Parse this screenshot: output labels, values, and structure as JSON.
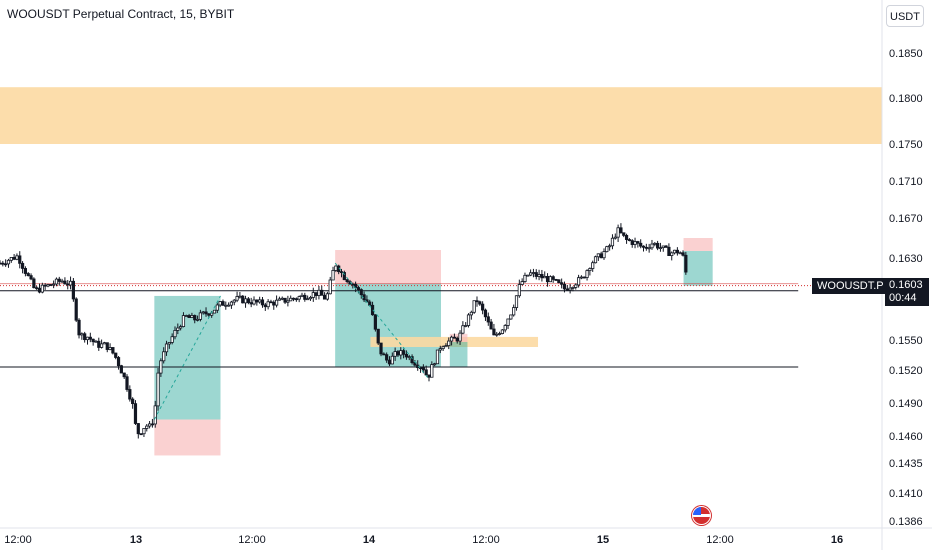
{
  "header": {
    "title": "WOOUSDT Perpetual Contract, 15, BYBIT",
    "currency": "USDT"
  },
  "price_tag": {
    "symbol": "WOOUSDT.P",
    "price": "0.1603",
    "countdown": "00:44"
  },
  "event_icon": "us-flag-icon",
  "colors": {
    "candle": "#131722",
    "zone": "#fcd9a2",
    "profit_zone": "#26a69a",
    "loss_zone": "#f7b9b9",
    "sr_line": "#131722",
    "last_price_line": "#d32f2f"
  },
  "chart_data": {
    "type": "candlestick",
    "symbol": "WOOUSDT Perpetual Contract",
    "interval": "15",
    "exchange": "BYBIT",
    "y_ticks": [
      "0.1850",
      "0.1800",
      "0.1750",
      "0.1710",
      "0.1670",
      "0.1630",
      "0.1603",
      "0.1550",
      "0.1520",
      "0.1490",
      "0.1460",
      "0.1435",
      "0.1410",
      "0.1386"
    ],
    "x_ticks": [
      "12:00",
      "13",
      "12:00",
      "14",
      "12:00",
      "15",
      "12:00",
      "16"
    ],
    "last_price": 0.1603,
    "price_path": [
      [
        0.0,
        0.1625
      ],
      [
        0.02,
        0.1632
      ],
      [
        0.03,
        0.1615
      ],
      [
        0.04,
        0.1598
      ],
      [
        0.06,
        0.1605
      ],
      [
        0.07,
        0.1608
      ],
      [
        0.08,
        0.1604
      ],
      [
        0.09,
        0.1555
      ],
      [
        0.1,
        0.1553
      ],
      [
        0.11,
        0.1545
      ],
      [
        0.12,
        0.1545
      ],
      [
        0.13,
        0.1535
      ],
      [
        0.14,
        0.1515
      ],
      [
        0.15,
        0.149
      ],
      [
        0.155,
        0.1462
      ],
      [
        0.16,
        0.1465
      ],
      [
        0.165,
        0.147
      ],
      [
        0.17,
        0.1468
      ],
      [
        0.175,
        0.1478
      ],
      [
        0.18,
        0.1525
      ],
      [
        0.19,
        0.1545
      ],
      [
        0.2,
        0.156
      ],
      [
        0.21,
        0.1573
      ],
      [
        0.22,
        0.157
      ],
      [
        0.23,
        0.1575
      ],
      [
        0.24,
        0.1578
      ],
      [
        0.25,
        0.1585
      ],
      [
        0.27,
        0.159
      ],
      [
        0.3,
        0.1585
      ],
      [
        0.32,
        0.1588
      ],
      [
        0.34,
        0.1592
      ],
      [
        0.36,
        0.1596
      ],
      [
        0.37,
        0.159
      ],
      [
        0.38,
        0.1625
      ],
      [
        0.39,
        0.1612
      ],
      [
        0.4,
        0.1605
      ],
      [
        0.42,
        0.1583
      ],
      [
        0.43,
        0.154
      ],
      [
        0.44,
        0.1528
      ],
      [
        0.45,
        0.1537
      ],
      [
        0.46,
        0.1536
      ],
      [
        0.47,
        0.1528
      ],
      [
        0.48,
        0.1522
      ],
      [
        0.485,
        0.1513
      ],
      [
        0.5,
        0.1545
      ],
      [
        0.51,
        0.1549
      ],
      [
        0.52,
        0.1552
      ],
      [
        0.53,
        0.157
      ],
      [
        0.54,
        0.159
      ],
      [
        0.55,
        0.1573
      ],
      [
        0.56,
        0.1553
      ],
      [
        0.57,
        0.1562
      ],
      [
        0.58,
        0.1578
      ],
      [
        0.59,
        0.1605
      ],
      [
        0.6,
        0.1615
      ],
      [
        0.62,
        0.161
      ],
      [
        0.63,
        0.1606
      ],
      [
        0.64,
        0.16
      ],
      [
        0.66,
        0.161
      ],
      [
        0.67,
        0.1625
      ],
      [
        0.68,
        0.1632
      ],
      [
        0.69,
        0.164
      ],
      [
        0.7,
        0.1658
      ],
      [
        0.71,
        0.1648
      ],
      [
        0.72,
        0.1645
      ],
      [
        0.73,
        0.164
      ],
      [
        0.74,
        0.1645
      ],
      [
        0.75,
        0.164
      ],
      [
        0.76,
        0.1635
      ],
      [
        0.77,
        0.1637
      ],
      [
        0.775,
        0.163
      ],
      [
        0.78,
        0.1603
      ]
    ],
    "horizontal_levels": [
      0.1598,
      0.1523
    ],
    "resistance_zone": [
      0.175,
      0.1812
    ],
    "annotation_boxes": [
      {
        "type": "profit",
        "x": [
          0.175,
          0.25
        ],
        "y": [
          0.1475,
          0.1593
        ]
      },
      {
        "type": "loss",
        "x": [
          0.175,
          0.25
        ],
        "y": [
          0.1442,
          0.1475
        ]
      },
      {
        "type": "loss",
        "x": [
          0.38,
          0.5
        ],
        "y": [
          0.1605,
          0.1638
        ]
      },
      {
        "type": "profit",
        "x": [
          0.38,
          0.5
        ],
        "y": [
          0.1523,
          0.1605
        ]
      },
      {
        "type": "zone",
        "x": [
          0.42,
          0.61
        ],
        "y": [
          0.1543,
          0.1553
        ]
      },
      {
        "type": "loss",
        "x": [
          0.51,
          0.53
        ],
        "y": [
          0.1548,
          0.1556
        ]
      },
      {
        "type": "profit",
        "x": [
          0.51,
          0.53
        ],
        "y": [
          0.1523,
          0.1548
        ]
      },
      {
        "type": "loss",
        "x": [
          0.775,
          0.808
        ],
        "y": [
          0.1637,
          0.165
        ]
      },
      {
        "type": "profit",
        "x": [
          0.775,
          0.808
        ],
        "y": [
          0.1603,
          0.1637
        ]
      }
    ]
  }
}
